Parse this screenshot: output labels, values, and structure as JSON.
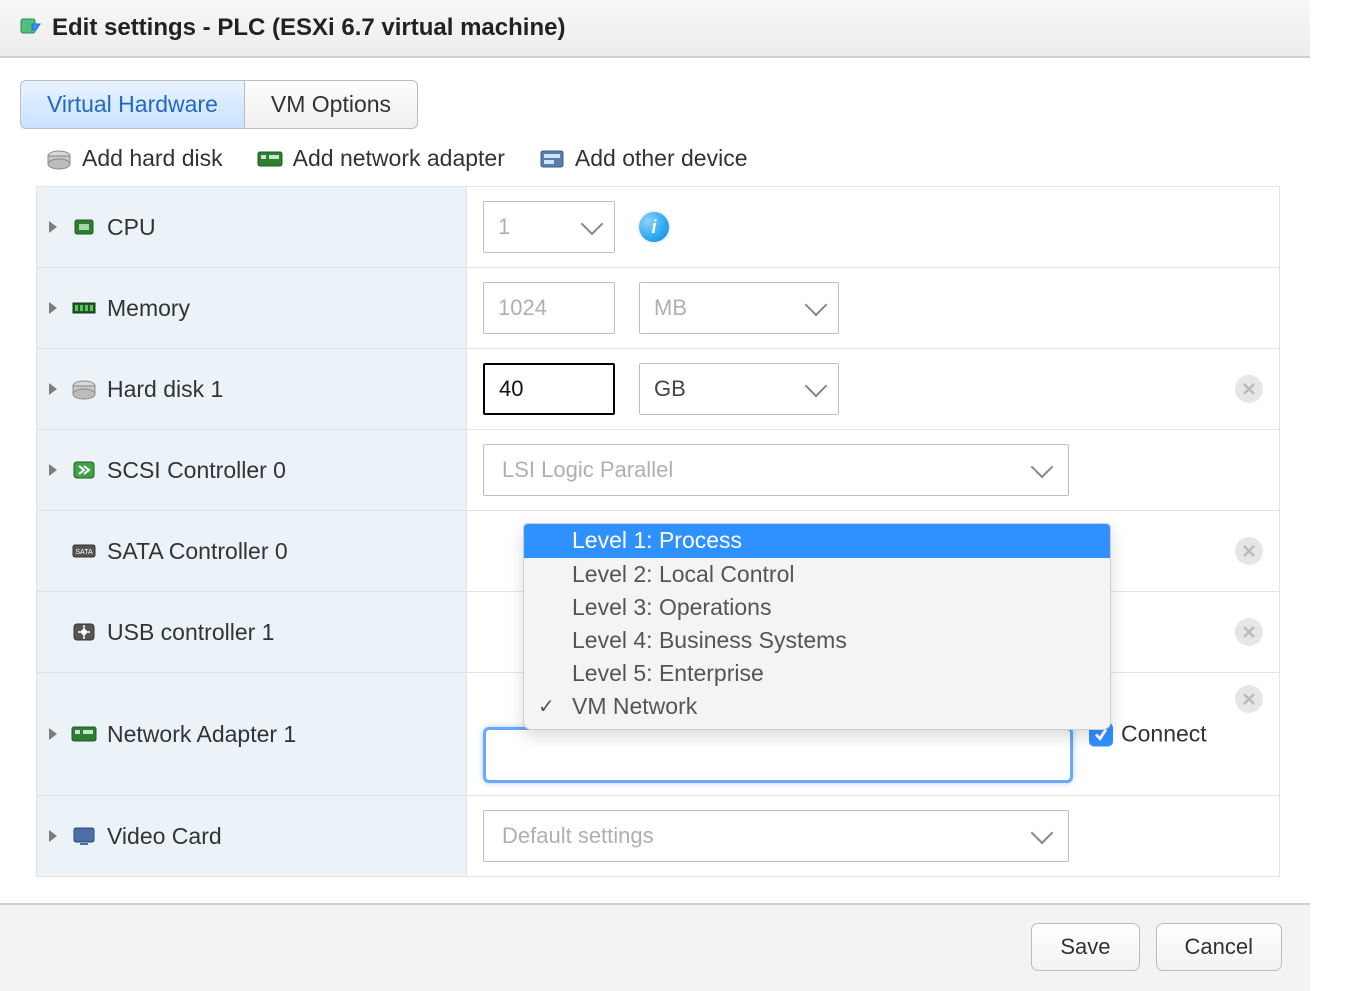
{
  "title": "Edit settings - PLC (ESXi 6.7 virtual machine)",
  "tabs": {
    "virtual_hardware": "Virtual Hardware",
    "vm_options": "VM Options"
  },
  "toolbar": {
    "add_hard_disk": "Add hard disk",
    "add_network_adapter": "Add network adapter",
    "add_other_device": "Add other device"
  },
  "rows": {
    "cpu": {
      "label": "CPU",
      "value": "1"
    },
    "memory": {
      "label": "Memory",
      "value": "1024",
      "unit": "MB"
    },
    "hdd": {
      "label": "Hard disk 1",
      "value": "40",
      "unit": "GB"
    },
    "scsi": {
      "label": "SCSI Controller 0",
      "value": "LSI Logic Parallel"
    },
    "sata": {
      "label": "SATA Controller 0"
    },
    "usb": {
      "label": "USB controller 1"
    },
    "net": {
      "label": "Network Adapter 1",
      "connect": "Connect"
    },
    "video": {
      "label": "Video Card",
      "value": "Default settings"
    }
  },
  "dropdown": {
    "options": [
      "Level 1: Process",
      "Level 2: Local Control",
      "Level 3: Operations",
      "Level 4: Business Systems",
      "Level 5: Enterprise",
      "VM Network"
    ],
    "highlighted_index": 0,
    "selected_index": 5
  },
  "footer": {
    "save": "Save",
    "cancel": "Cancel"
  },
  "colors": {
    "highlight": "#2f91ff",
    "tab_active_bg_top": "#e9f3ff",
    "tab_active_bg_bottom": "#c9e2ff",
    "label_bg": "#ecf3f8",
    "border": "#e3e3e3"
  }
}
